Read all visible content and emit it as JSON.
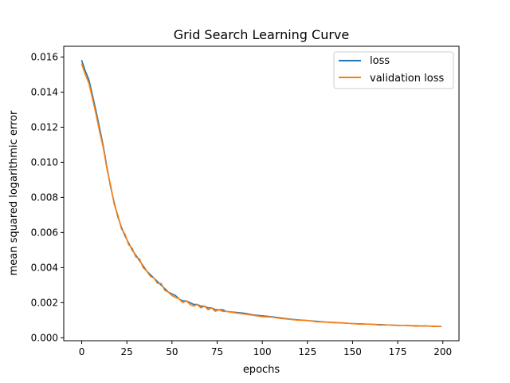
{
  "chart_data": {
    "type": "line",
    "title": "Grid Search Learning Curve",
    "xlabel": "epochs",
    "ylabel": "mean squared logarithmic error",
    "xlim": [
      -9.95,
      208.95
    ],
    "ylim": [
      -0.000168,
      0.016612
    ],
    "xticks": [
      0,
      25,
      50,
      75,
      100,
      125,
      150,
      175,
      200
    ],
    "yticks": [
      0.0,
      0.002,
      0.004,
      0.006,
      0.008,
      0.01,
      0.012,
      0.014,
      0.016
    ],
    "ytick_labels": [
      "0.000",
      "0.002",
      "0.004",
      "0.006",
      "0.008",
      "0.010",
      "0.012",
      "0.014",
      "0.016"
    ],
    "grid": false,
    "legend_position": "upper right",
    "series": [
      {
        "name": "loss",
        "color": "#1f77b4",
        "x": [
          0,
          2,
          4,
          6,
          8,
          10,
          12,
          14,
          16,
          18,
          20,
          22,
          24,
          26,
          28,
          30,
          32,
          34,
          36,
          38,
          40,
          42,
          44,
          46,
          48,
          50,
          52,
          54,
          56,
          58,
          60,
          62,
          64,
          66,
          68,
          70,
          72,
          74,
          76,
          78,
          80,
          85,
          90,
          95,
          100,
          105,
          110,
          115,
          120,
          125,
          130,
          135,
          140,
          145,
          150,
          155,
          160,
          165,
          170,
          175,
          180,
          185,
          190,
          195,
          199
        ],
        "y": [
          0.0158,
          0.0152,
          0.0147,
          0.0138,
          0.0129,
          0.0119,
          0.0109,
          0.0097,
          0.0086,
          0.0077,
          0.0069,
          0.0063,
          0.0058,
          0.0054,
          0.005,
          0.0047,
          0.0044,
          0.0041,
          0.0038,
          0.0036,
          0.0034,
          0.0032,
          0.003,
          0.0028,
          0.0026,
          0.0025,
          0.0024,
          0.0022,
          0.0021,
          0.0021,
          0.002,
          0.0019,
          0.0019,
          0.0018,
          0.0018,
          0.0017,
          0.0017,
          0.0016,
          0.0016,
          0.0016,
          0.0015,
          0.00145,
          0.0014,
          0.0013,
          0.00125,
          0.0012,
          0.00113,
          0.00107,
          0.00102,
          0.00098,
          0.00094,
          0.0009,
          0.00087,
          0.00084,
          0.00081,
          0.00079,
          0.00077,
          0.00075,
          0.00073,
          0.00071,
          0.0007,
          0.00068,
          0.00067,
          0.00066,
          0.00065
        ]
      },
      {
        "name": "validation loss",
        "color": "#ff7f0e",
        "x": [
          0,
          2,
          4,
          6,
          8,
          10,
          12,
          14,
          16,
          18,
          20,
          22,
          24,
          26,
          28,
          30,
          32,
          34,
          36,
          38,
          40,
          42,
          44,
          46,
          48,
          50,
          52,
          54,
          56,
          58,
          60,
          62,
          64,
          66,
          68,
          70,
          72,
          74,
          76,
          78,
          80,
          85,
          90,
          95,
          100,
          105,
          110,
          115,
          120,
          125,
          130,
          135,
          140,
          145,
          150,
          155,
          160,
          165,
          170,
          175,
          180,
          185,
          190,
          195,
          199
        ],
        "y": [
          0.0156,
          0.015,
          0.0145,
          0.0136,
          0.0127,
          0.0117,
          0.0108,
          0.0096,
          0.0087,
          0.0076,
          0.007,
          0.0062,
          0.0059,
          0.0053,
          0.0051,
          0.0046,
          0.0045,
          0.004,
          0.0038,
          0.0035,
          0.0034,
          0.0031,
          0.0031,
          0.0027,
          0.0026,
          0.0024,
          0.0023,
          0.0022,
          0.002,
          0.0021,
          0.0019,
          0.0018,
          0.0019,
          0.0017,
          0.0018,
          0.0016,
          0.0017,
          0.0015,
          0.0016,
          0.0015,
          0.0015,
          0.00142,
          0.00135,
          0.00128,
          0.0012,
          0.00118,
          0.0011,
          0.00105,
          0.001,
          0.00099,
          0.00091,
          0.00089,
          0.00085,
          0.00085,
          0.0008,
          0.00077,
          0.00078,
          0.00072,
          0.00073,
          0.0007,
          0.00071,
          0.00066,
          0.00068,
          0.00064,
          0.00065
        ]
      }
    ]
  }
}
